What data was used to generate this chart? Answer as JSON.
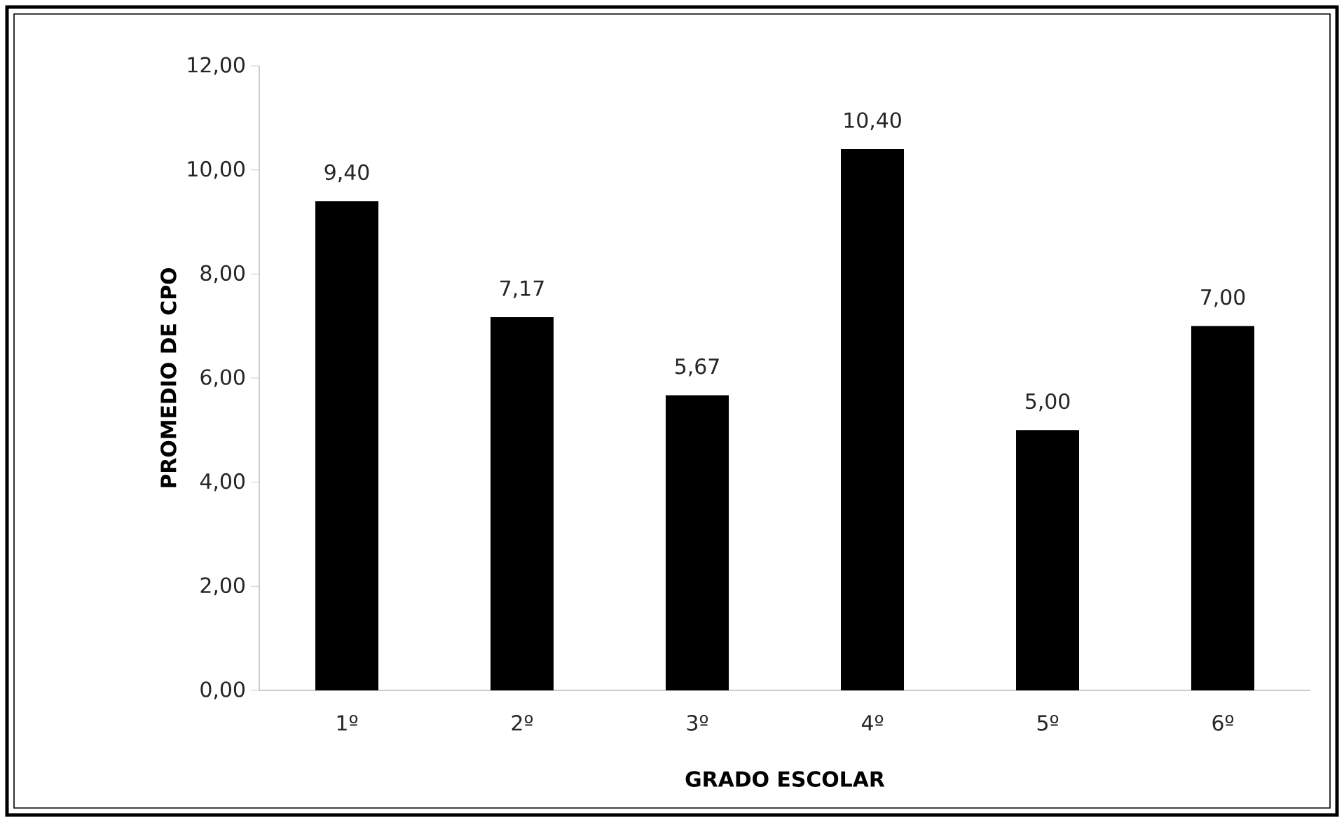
{
  "chart_data": {
    "type": "bar",
    "xlabel": "GRADO ESCOLAR",
    "ylabel": "PROMEDIO DE CPO",
    "categories": [
      "1º",
      "2º",
      "3º",
      "4º",
      "5º",
      "6º"
    ],
    "values": [
      9.4,
      7.17,
      5.67,
      10.4,
      5.0,
      7.0
    ],
    "value_labels": [
      "9,40",
      "7,17",
      "5,67",
      "10,40",
      "5,00",
      "7,00"
    ],
    "color": "#000000",
    "ylim": [
      0,
      12
    ],
    "yticks": [
      {
        "value": 0,
        "label": "0,00"
      },
      {
        "value": 2,
        "label": "2,00"
      },
      {
        "value": 4,
        "label": "4,00"
      },
      {
        "value": 6,
        "label": "6,00"
      },
      {
        "value": 8,
        "label": "8,00"
      },
      {
        "value": 10,
        "label": "10,00"
      },
      {
        "value": 12,
        "label": "12,00"
      }
    ],
    "grid": false
  }
}
